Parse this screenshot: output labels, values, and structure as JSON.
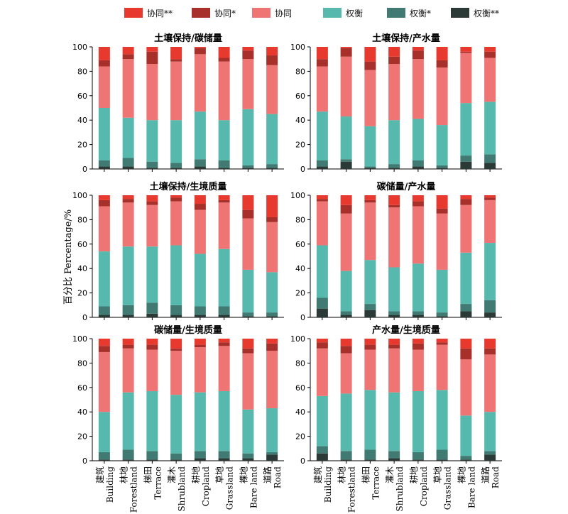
{
  "chart_data": {
    "type": "bar",
    "stacked": true,
    "ylabel": "百分比 Percentage/%",
    "ylim": [
      0,
      100
    ],
    "yticks": [
      0,
      20,
      40,
      60,
      80,
      100
    ],
    "categories": [
      "建筑 Building",
      "林地 Forestland",
      "梯田 Terrace",
      "灌木 Shrubland",
      "耕地 Cropland",
      "草地 Grassland",
      "裸地 Bare land",
      "道路 Road"
    ],
    "categories_cn": [
      "建筑",
      "林地",
      "梯田",
      "灌木",
      "耕地",
      "草地",
      "裸地",
      "道路"
    ],
    "categories_en": [
      "Building",
      "Forestland",
      "Terrace",
      "Shrubland",
      "Cropland",
      "Grassland",
      "Bare land",
      "Road"
    ],
    "legend": [
      {
        "label": "协同**",
        "color": "#e8392f"
      },
      {
        "label": "协同*",
        "color": "#a8302a"
      },
      {
        "label": "协同",
        "color": "#ef7474"
      },
      {
        "label": "权衡",
        "color": "#57b9ad"
      },
      {
        "label": "权衡*",
        "color": "#417a72"
      },
      {
        "label": "权衡**",
        "color": "#2b3a36"
      }
    ],
    "legend_position": "top",
    "stack_order": [
      "权衡**",
      "权衡*",
      "权衡",
      "协同",
      "协同*",
      "协同**"
    ],
    "panels": [
      {
        "title": "土壤保持/碳储量",
        "series": [
          {
            "name": "权衡**",
            "values": [
              2,
              2,
              1,
              1,
              2,
              1,
              1,
              1
            ]
          },
          {
            "name": "权衡*",
            "values": [
              5,
              7,
              5,
              4,
              6,
              6,
              2,
              3
            ]
          },
          {
            "name": "权衡",
            "values": [
              43,
              33,
              34,
              35,
              39,
              33,
              46,
              41
            ]
          },
          {
            "name": "协同",
            "values": [
              34,
              48,
              46,
              48,
              47,
              48,
              41,
              40
            ]
          },
          {
            "name": "协同*",
            "values": [
              5,
              4,
              10,
              2,
              5,
              3,
              7,
              8
            ]
          },
          {
            "name": "协同**",
            "values": [
              11,
              6,
              4,
              10,
              1,
              9,
              3,
              7
            ]
          }
        ]
      },
      {
        "title": "土壤保持/产水量",
        "series": [
          {
            "name": "权衡**",
            "values": [
              2,
              6,
              1,
              1,
              2,
              1,
              6,
              5
            ]
          },
          {
            "name": "权衡*",
            "values": [
              5,
              2,
              1,
              3,
              5,
              2,
              5,
              7
            ]
          },
          {
            "name": "权衡",
            "values": [
              40,
              35,
              33,
              36,
              34,
              33,
              43,
              43
            ]
          },
          {
            "name": "协同",
            "values": [
              37,
              49,
              46,
              46,
              49,
              47,
              41,
              36
            ]
          },
          {
            "name": "协同*",
            "values": [
              6,
              7,
              7,
              6,
              7,
              6,
              1,
              5
            ]
          },
          {
            "name": "协同**",
            "values": [
              10,
              1,
              12,
              8,
              3,
              11,
              4,
              4
            ]
          }
        ]
      },
      {
        "title": "土壤保持/生境质量",
        "series": [
          {
            "name": "权衡**",
            "values": [
              2,
              2,
              3,
              2,
              2,
              2,
              1,
              1
            ]
          },
          {
            "name": "权衡*",
            "values": [
              7,
              8,
              9,
              8,
              7,
              7,
              3,
              3
            ]
          },
          {
            "name": "权衡",
            "values": [
              45,
              48,
              46,
              49,
              43,
              47,
              35,
              33
            ]
          },
          {
            "name": "协同",
            "values": [
              37,
              36,
              34,
              36,
              36,
              38,
              42,
              41
            ]
          },
          {
            "name": "协同*",
            "values": [
              5,
              3,
              3,
              3,
              5,
              2,
              7,
              4
            ]
          },
          {
            "name": "协同**",
            "values": [
              4,
              3,
              5,
              2,
              7,
              4,
              12,
              18
            ]
          }
        ]
      },
      {
        "title": "碳储量/产水量",
        "series": [
          {
            "name": "权衡**",
            "values": [
              7,
              2,
              6,
              2,
              2,
              1,
              5,
              4
            ]
          },
          {
            "name": "权衡*",
            "values": [
              9,
              3,
              5,
              3,
              3,
              3,
              6,
              10
            ]
          },
          {
            "name": "权衡",
            "values": [
              43,
              33,
              36,
              36,
              39,
              35,
              42,
              47
            ]
          },
          {
            "name": "协同",
            "values": [
              36,
              47,
              47,
              49,
              47,
              46,
              39,
              35
            ]
          },
          {
            "name": "协同*",
            "values": [
              2,
              7,
              2,
              2,
              4,
              4,
              5,
              2
            ]
          },
          {
            "name": "协同**",
            "values": [
              3,
              8,
              4,
              8,
              5,
              11,
              3,
              2
            ]
          }
        ]
      },
      {
        "title": "碳储量/生境质量",
        "series": [
          {
            "name": "权衡**",
            "values": [
              1,
              1,
              1,
              1,
              2,
              2,
              2,
              5
            ]
          },
          {
            "name": "权衡*",
            "values": [
              6,
              8,
              7,
              5,
              6,
              6,
              4,
              2
            ]
          },
          {
            "name": "权衡",
            "values": [
              33,
              47,
              49,
              48,
              48,
              49,
              36,
              36
            ]
          },
          {
            "name": "协同",
            "values": [
              49,
              36,
              34,
              36,
              37,
              37,
              46,
              47
            ]
          },
          {
            "name": "协同*",
            "values": [
              5,
              3,
              4,
              2,
              2,
              3,
              4,
              6
            ]
          },
          {
            "name": "协同**",
            "values": [
              6,
              5,
              5,
              8,
              5,
              3,
              8,
              4
            ]
          }
        ]
      },
      {
        "title": "产水量/生境质量",
        "series": [
          {
            "name": "权衡**",
            "values": [
              6,
              1,
              1,
              2,
              1,
              1,
              1,
              5
            ]
          },
          {
            "name": "权衡*",
            "values": [
              6,
              7,
              8,
              6,
              6,
              8,
              3,
              3
            ]
          },
          {
            "name": "权衡",
            "values": [
              41,
              47,
              49,
              48,
              50,
              49,
              33,
              32
            ]
          },
          {
            "name": "协同",
            "values": [
              39,
              33,
              33,
              36,
              34,
              37,
              46,
              47
            ]
          },
          {
            "name": "协同*",
            "values": [
              5,
              6,
              4,
              3,
              5,
              2,
              9,
              5
            ]
          },
          {
            "name": "协同**",
            "values": [
              3,
              6,
              5,
              5,
              4,
              3,
              8,
              8
            ]
          }
        ]
      }
    ]
  }
}
